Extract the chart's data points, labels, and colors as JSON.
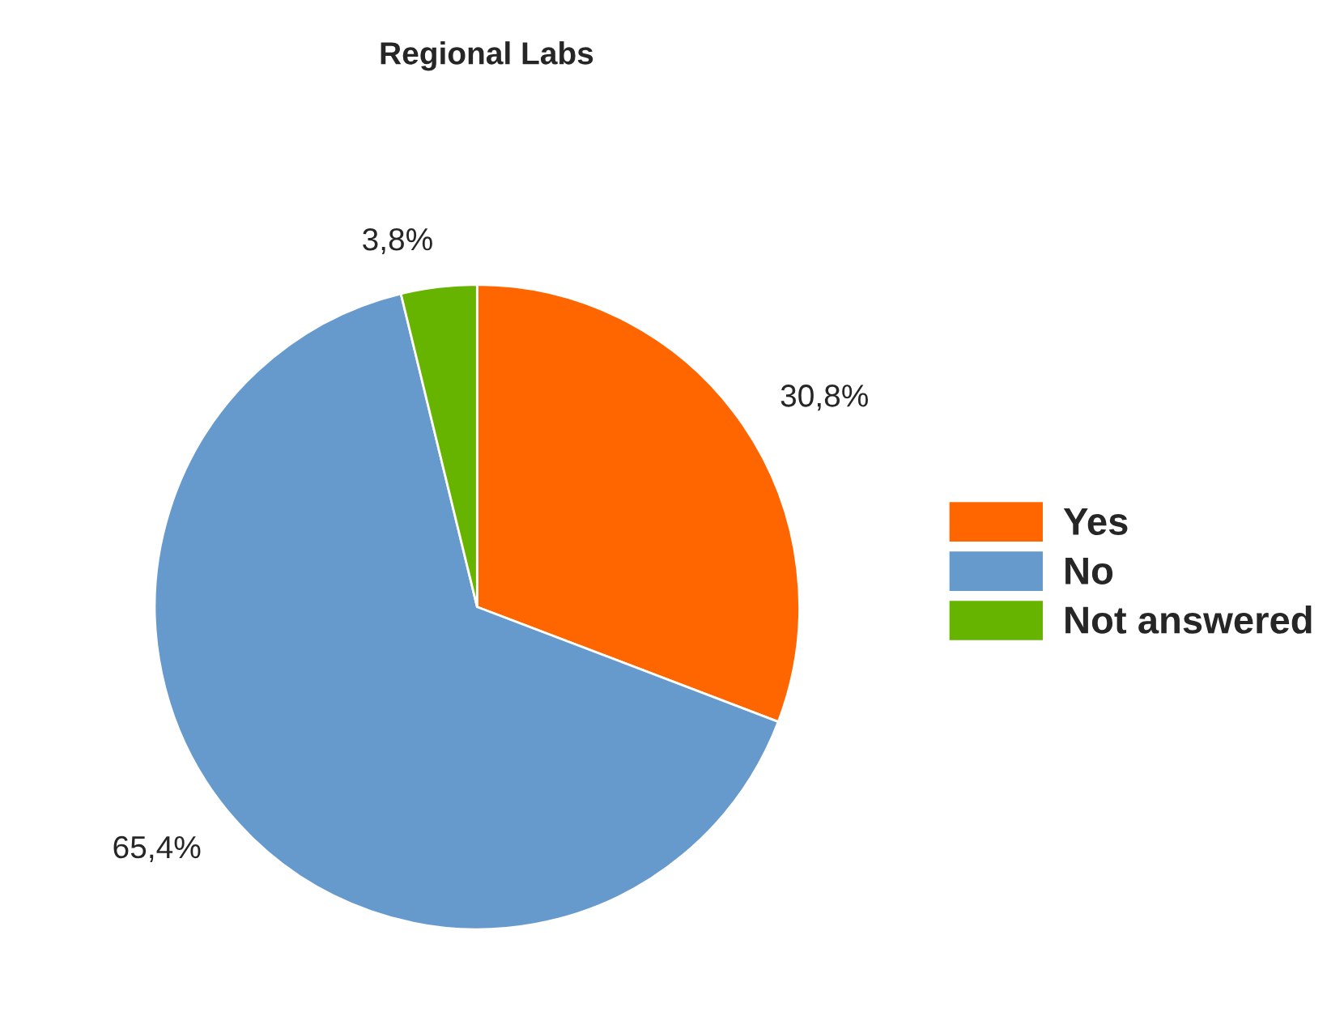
{
  "chart_data": {
    "type": "pie",
    "title": "Regional Labs",
    "categories": [
      "Yes",
      "No",
      "Not answered"
    ],
    "values": [
      30.8,
      65.4,
      3.8
    ],
    "value_labels": [
      "30,8%",
      "65,4%",
      "3,8%"
    ],
    "colors": [
      "#ff6600",
      "#6699cc",
      "#66b300"
    ],
    "legend": "right"
  }
}
